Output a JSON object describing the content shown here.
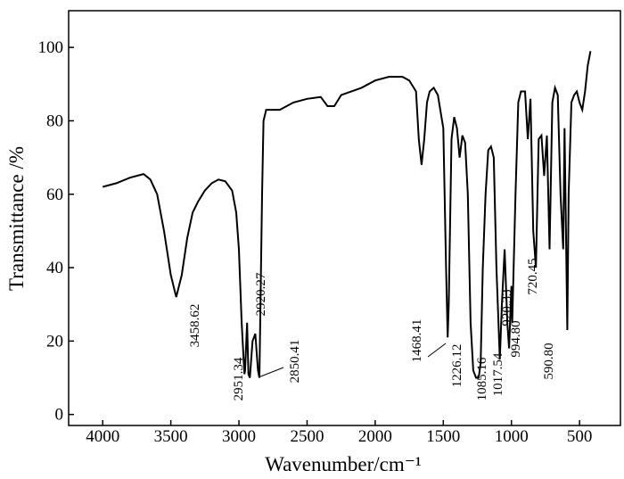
{
  "chart_data": {
    "type": "line",
    "x_label": "Wavenumber/cm⁻¹",
    "y_label": "Transmittance /%",
    "color": "#000000",
    "xlim": [
      4250,
      200
    ],
    "xticks": [
      4000,
      3500,
      3000,
      2500,
      2000,
      1500,
      1000,
      500
    ],
    "ylim": [
      -3,
      110
    ],
    "yticks": [
      0,
      20,
      40,
      60,
      80,
      100
    ],
    "x": [
      4000,
      3900,
      3800,
      3700,
      3650,
      3600,
      3550,
      3500,
      3460,
      3420,
      3380,
      3340,
      3300,
      3250,
      3200,
      3150,
      3100,
      3050,
      3020,
      3000,
      2980,
      2960,
      2955,
      2940,
      2930,
      2920,
      2900,
      2880,
      2860,
      2850,
      2840,
      2830,
      2820,
      2800,
      2700,
      2650,
      2600,
      2500,
      2400,
      2350,
      2300,
      2250,
      2100,
      2000,
      1900,
      1800,
      1750,
      1700,
      1680,
      1660,
      1640,
      1620,
      1600,
      1570,
      1540,
      1500,
      1480,
      1468,
      1460,
      1440,
      1420,
      1400,
      1380,
      1360,
      1340,
      1320,
      1300,
      1280,
      1260,
      1240,
      1226,
      1210,
      1190,
      1170,
      1150,
      1130,
      1110,
      1085,
      1070,
      1050,
      1030,
      1017,
      1000,
      994,
      970,
      950,
      930,
      900,
      880,
      860,
      840,
      820,
      800,
      780,
      760,
      740,
      720,
      700,
      680,
      660,
      640,
      620,
      610,
      600,
      590,
      580,
      560,
      540,
      520,
      500,
      480,
      460,
      440,
      420
    ],
    "values": [
      62,
      63,
      64.5,
      65.5,
      64,
      60,
      50,
      38,
      32,
      38,
      48,
      55,
      58,
      61,
      63,
      64,
      63.5,
      61,
      55,
      45,
      25,
      11,
      12,
      25,
      11,
      10,
      20,
      22,
      12,
      10,
      35,
      60,
      80,
      83,
      83,
      84,
      85,
      86,
      86.5,
      84,
      84,
      87,
      89,
      91,
      92,
      92,
      91,
      88,
      75,
      68,
      75,
      85,
      88,
      89,
      87,
      78,
      40,
      21,
      30,
      75,
      81,
      78,
      70,
      76,
      74,
      60,
      25,
      12,
      10,
      10,
      14,
      40,
      60,
      72,
      73,
      70,
      40,
      15,
      30,
      45,
      25,
      18,
      35,
      25,
      60,
      85,
      88,
      88,
      75,
      86,
      50,
      40,
      75,
      76,
      65,
      76,
      45,
      85,
      89,
      87,
      60,
      45,
      78,
      50,
      23,
      60,
      85,
      87,
      88,
      85,
      83,
      88,
      95,
      99
    ],
    "annotations": [
      "3458.62",
      "2951.34",
      "2920.27",
      "2850.41",
      "1468.41",
      "1226.12",
      "1085.16",
      "1017.54",
      "994.80",
      "920.33",
      "720.45",
      "590.80"
    ]
  }
}
